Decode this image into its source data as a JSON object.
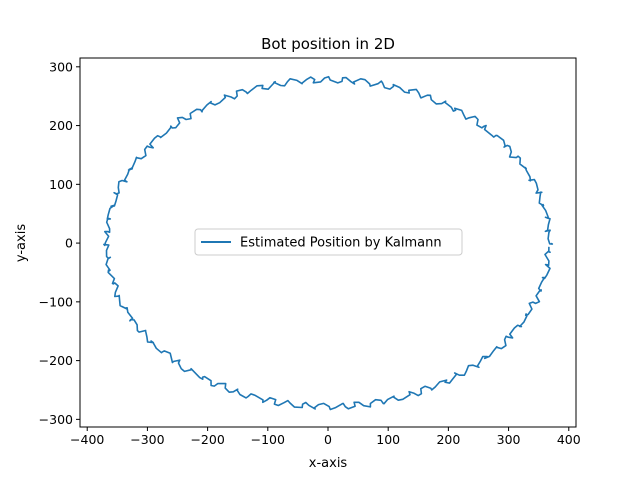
{
  "chart_data": {
    "type": "line",
    "title": "Bot position in 2D",
    "xlabel": "x-axis",
    "ylabel": "y-axis",
    "xlim": [
      -412,
      412
    ],
    "ylim": [
      -313,
      315
    ],
    "xticks": [
      -400,
      -300,
      -200,
      -100,
      0,
      100,
      200,
      300,
      400
    ],
    "yticks": [
      -300,
      -200,
      -100,
      0,
      100,
      200,
      300
    ],
    "grid": false,
    "legend_position": "center",
    "series": [
      {
        "name": "Estimated Position by Kalmann",
        "color": "#1f77b4",
        "shape": "noisy ellipse",
        "center": [
          0,
          0
        ],
        "radius_x": 368,
        "radius_y": 278,
        "start_point": [
          372,
          -5
        ],
        "noise_amplitude": 6
      }
    ]
  }
}
